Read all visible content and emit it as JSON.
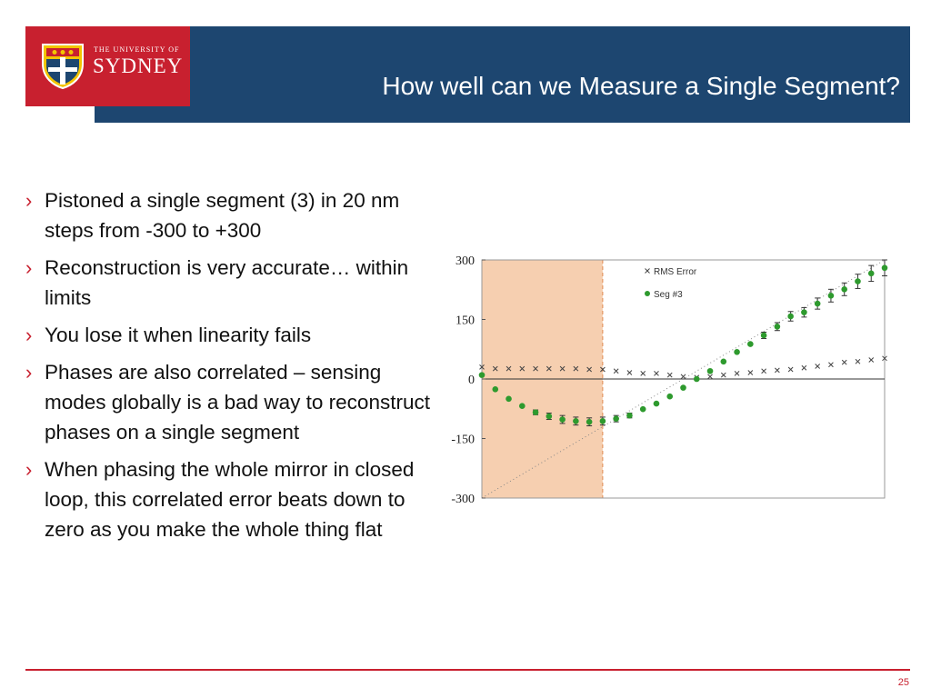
{
  "logo": {
    "top_line": "THE UNIVERSITY OF",
    "name": "SYDNEY"
  },
  "header": {
    "title": "How well can we Measure a Single Segment?"
  },
  "bullets": [
    "Pistoned a single segment (3) in 20 nm steps from -300 to +300",
    "Reconstruction is very accurate… within limits",
    "You lose it when linearity fails",
    "Phases are also correlated – sensing modes globally is a bad way to reconstruct phases on a single segment",
    "When phasing the whole mirror in closed loop, this correlated error beats down to zero as you make the whole thing flat"
  ],
  "bullet_marker": "›",
  "colors": {
    "header_blue": "#1d4670",
    "brand_red": "#c8202f",
    "shaded_region": "#f6cfb0",
    "series_green": "#2e9a2e"
  },
  "chart_data": {
    "type": "scatter",
    "title": "",
    "xlabel": "",
    "ylabel": "",
    "ylim": [
      -300,
      300
    ],
    "xlim": [
      -300,
      300
    ],
    "y_ticks": [
      "300",
      "150",
      "0",
      "-150",
      "-300"
    ],
    "shaded_x_range": [
      -300,
      -120
    ],
    "legend": [
      "RMS Error",
      "Seg #3"
    ],
    "legend_position": "top-right",
    "series": [
      {
        "name": "RMS Error",
        "marker": "x",
        "x": [
          -300,
          -280,
          -260,
          -240,
          -220,
          -200,
          -180,
          -160,
          -140,
          -120,
          -100,
          -80,
          -60,
          -40,
          -20,
          0,
          20,
          40,
          60,
          80,
          100,
          120,
          140,
          160,
          180,
          200,
          220,
          240,
          260,
          280,
          300
        ],
        "y": [
          30,
          26,
          26,
          26,
          26,
          26,
          26,
          26,
          24,
          24,
          20,
          16,
          14,
          14,
          10,
          6,
          4,
          6,
          10,
          14,
          16,
          20,
          22,
          24,
          28,
          32,
          36,
          42,
          44,
          48,
          52
        ]
      },
      {
        "name": "Seg #3",
        "marker": "dot",
        "x": [
          -300,
          -280,
          -260,
          -240,
          -220,
          -200,
          -180,
          -160,
          -140,
          -120,
          -100,
          -80,
          -60,
          -40,
          -20,
          0,
          20,
          40,
          60,
          80,
          100,
          120,
          140,
          160,
          180,
          200,
          220,
          240,
          260,
          280,
          300
        ],
        "y": [
          10,
          -26,
          -50,
          -68,
          -84,
          -94,
          -102,
          -106,
          -108,
          -106,
          -100,
          -92,
          -76,
          -62,
          -44,
          -22,
          0,
          20,
          44,
          68,
          88,
          110,
          132,
          158,
          168,
          190,
          210,
          226,
          246,
          266,
          280
        ],
        "err": [
          0,
          0,
          0,
          0,
          6,
          8,
          10,
          10,
          10,
          10,
          8,
          6,
          0,
          0,
          0,
          0,
          0,
          0,
          0,
          0,
          0,
          8,
          10,
          12,
          12,
          14,
          16,
          16,
          18,
          20,
          20
        ]
      }
    ],
    "reference_line": {
      "slope": 1,
      "intercept": 0,
      "style": "dotted"
    }
  },
  "footer": {
    "page_number": "25"
  }
}
